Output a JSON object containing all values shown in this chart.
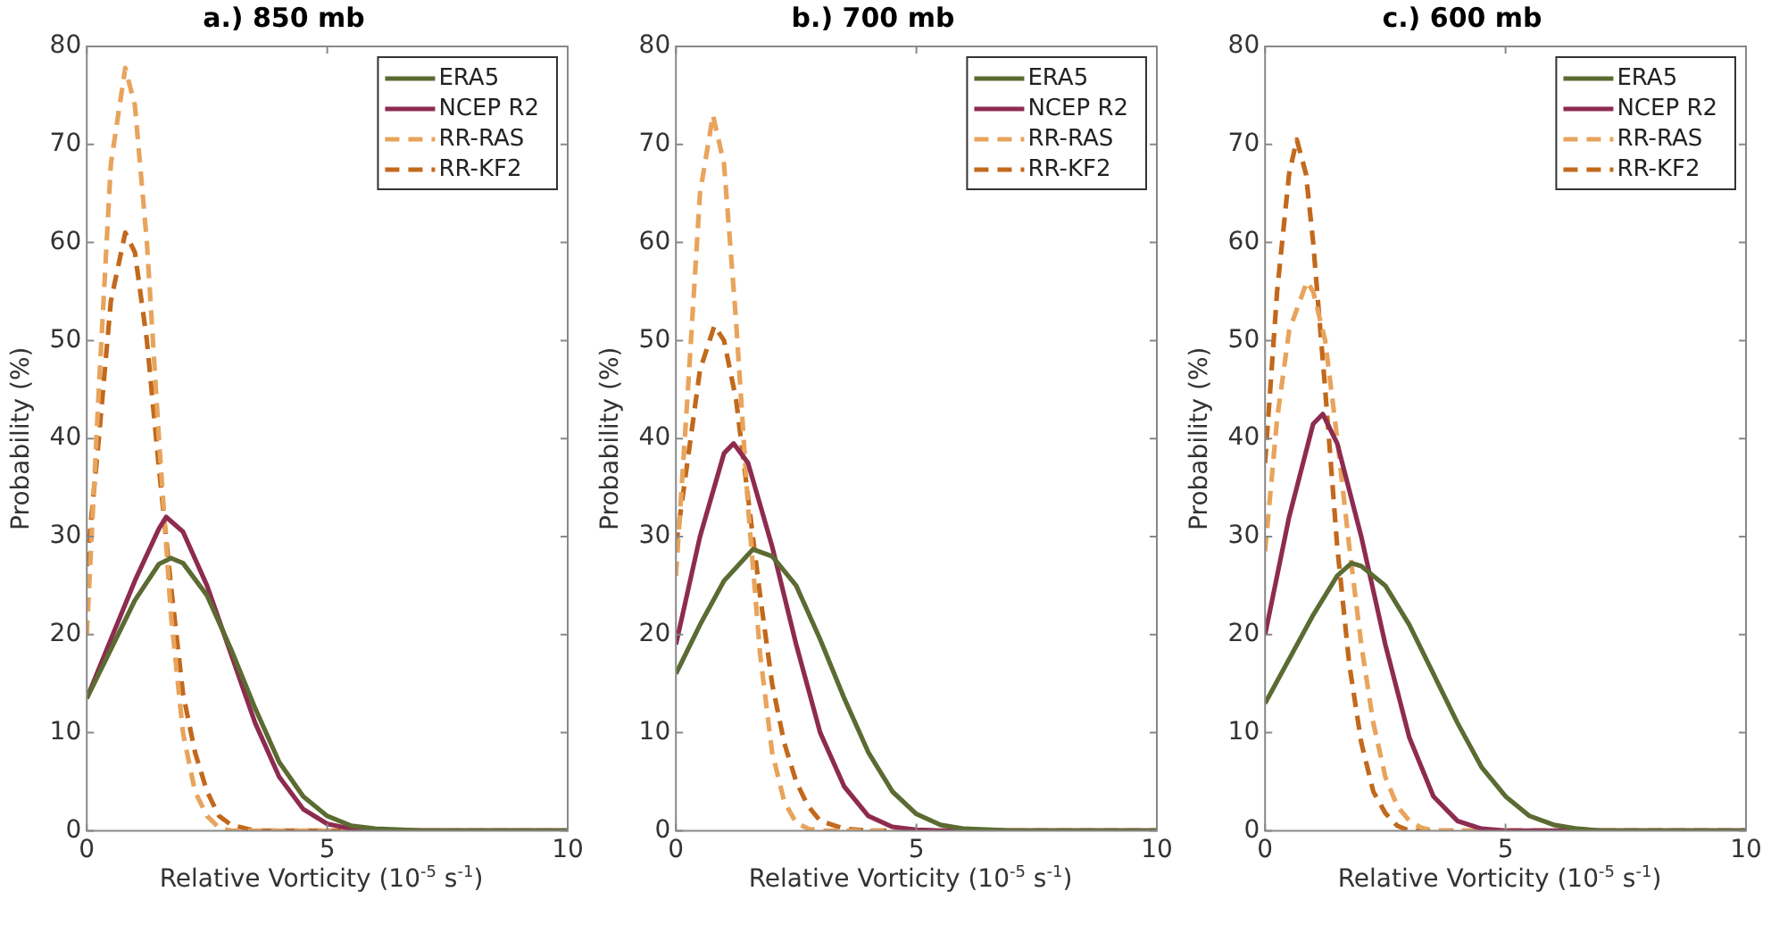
{
  "chart_data": [
    {
      "type": "line",
      "title": "a.) 850 mb",
      "xlabel": "Relative Vorticity (10$^{-5}$ s$^{-1}$)",
      "ylabel": "Probability (%)",
      "xlim": [
        0,
        10
      ],
      "xticks": [
        0,
        5,
        10
      ],
      "ylim": [
        0,
        80
      ],
      "yticks": [
        0,
        10,
        20,
        30,
        40,
        50,
        60,
        70,
        80
      ],
      "grid": false,
      "legend": "top right",
      "marker": "none",
      "series": [
        {
          "name": "ERA5",
          "color": "#5b6b32",
          "line_style": "solid",
          "x": [
            0,
            0.5,
            1,
            1.5,
            1.75,
            2,
            2.5,
            3,
            3.5,
            4,
            4.5,
            5,
            5.5,
            6,
            7,
            10
          ],
          "values": [
            13.5,
            18.5,
            23.5,
            27.2,
            27.8,
            27.3,
            24,
            18.5,
            12.5,
            7,
            3.5,
            1.5,
            0.5,
            0.2,
            0,
            0
          ]
        },
        {
          "name": "NCEP R2",
          "color": "#8e2b50",
          "line_style": "solid",
          "x": [
            0,
            0.5,
            1,
            1.5,
            1.65,
            2,
            2.5,
            3,
            3.5,
            4,
            4.5,
            5,
            5.5,
            6,
            10
          ],
          "values": [
            13.5,
            19.5,
            25.5,
            30.8,
            32,
            30.5,
            25,
            18,
            11,
            5.5,
            2.2,
            0.7,
            0.2,
            0,
            0
          ]
        },
        {
          "name": "RR-RAS",
          "color": "#e8a45c",
          "line_style": "dashed",
          "x": [
            0,
            0.25,
            0.5,
            0.8,
            1,
            1.25,
            1.5,
            1.75,
            2,
            2.25,
            2.5,
            2.75,
            3,
            10
          ],
          "values": [
            20,
            45,
            68,
            77.8,
            74,
            60,
            40,
            22,
            10,
            4,
            1.5,
            0.3,
            0,
            0
          ]
        },
        {
          "name": "RR-KF2",
          "color": "#c2691c",
          "line_style": "dashed",
          "x": [
            0,
            0.25,
            0.5,
            0.8,
            1,
            1.25,
            1.5,
            1.75,
            2,
            2.25,
            2.5,
            2.75,
            3,
            3.5,
            10
          ],
          "values": [
            27,
            40,
            54,
            61,
            59,
            50,
            37,
            25,
            14,
            8,
            4,
            1.5,
            0.6,
            0,
            0
          ]
        }
      ]
    },
    {
      "type": "line",
      "title": "b.) 700 mb",
      "xlabel": "Relative Vorticity (10$^{-5}$ s$^{-1}$)",
      "ylabel": "Probability (%)",
      "xlim": [
        0,
        10
      ],
      "xticks": [
        0,
        5,
        10
      ],
      "ylim": [
        0,
        80
      ],
      "yticks": [
        0,
        10,
        20,
        30,
        40,
        50,
        60,
        70,
        80
      ],
      "grid": false,
      "legend": "top right",
      "marker": "none",
      "series": [
        {
          "name": "ERA5",
          "color": "#5b6b32",
          "line_style": "solid",
          "x": [
            0,
            0.5,
            1,
            1.6,
            2,
            2.5,
            3,
            3.5,
            4,
            4.5,
            5,
            5.5,
            6,
            7,
            10
          ],
          "values": [
            16,
            21,
            25.5,
            28.7,
            28,
            25,
            19.5,
            13.5,
            8,
            4,
            1.7,
            0.6,
            0.2,
            0,
            0
          ]
        },
        {
          "name": "NCEP R2",
          "color": "#8e2b50",
          "line_style": "solid",
          "x": [
            0,
            0.5,
            1,
            1.2,
            1.5,
            2,
            2.5,
            3,
            3.5,
            4,
            4.5,
            5,
            5.5,
            10
          ],
          "values": [
            19,
            30,
            38.5,
            39.5,
            37.5,
            29,
            19,
            10,
            4.5,
            1.5,
            0.4,
            0.1,
            0,
            0
          ]
        },
        {
          "name": "RR-RAS",
          "color": "#e8a45c",
          "line_style": "dashed",
          "x": [
            0,
            0.25,
            0.5,
            0.77,
            1,
            1.25,
            1.5,
            1.75,
            2,
            2.25,
            2.5,
            2.75,
            3,
            10
          ],
          "values": [
            26,
            45,
            65,
            73,
            68,
            52,
            33,
            18,
            8,
            3,
            0.8,
            0.2,
            0,
            0
          ]
        },
        {
          "name": "RR-KF2",
          "color": "#c2691c",
          "line_style": "dashed",
          "x": [
            0,
            0.25,
            0.5,
            0.8,
            1,
            1.25,
            1.5,
            1.75,
            2,
            2.25,
            2.5,
            2.75,
            3,
            3.5,
            4,
            10
          ],
          "values": [
            29,
            38,
            47,
            51.5,
            50,
            44,
            34,
            24,
            15,
            9,
            5,
            2.5,
            1,
            0.2,
            0,
            0
          ]
        }
      ]
    },
    {
      "type": "line",
      "title": "c.) 600 mb",
      "xlabel": "Relative Vorticity (10$^{-5}$ s$^{-1}$)",
      "ylabel": "Probability (%)",
      "xlim": [
        0,
        10
      ],
      "xticks": [
        0,
        5,
        10
      ],
      "ylim": [
        0,
        80
      ],
      "yticks": [
        0,
        10,
        20,
        30,
        40,
        50,
        60,
        70,
        80
      ],
      "grid": false,
      "legend": "top right",
      "marker": "none",
      "series": [
        {
          "name": "ERA5",
          "color": "#5b6b32",
          "line_style": "solid",
          "x": [
            0,
            0.5,
            1,
            1.5,
            1.8,
            2,
            2.5,
            3,
            3.5,
            4,
            4.5,
            5,
            5.5,
            6,
            6.5,
            7,
            10
          ],
          "values": [
            13,
            17.5,
            22,
            26,
            27.3,
            27,
            25,
            21,
            16,
            11,
            6.5,
            3.5,
            1.5,
            0.6,
            0.2,
            0,
            0
          ]
        },
        {
          "name": "NCEP R2",
          "color": "#8e2b50",
          "line_style": "solid",
          "x": [
            0,
            0.5,
            1,
            1.2,
            1.5,
            2,
            2.5,
            3,
            3.5,
            4,
            4.5,
            5,
            10
          ],
          "values": [
            20,
            32,
            41.5,
            42.5,
            39.5,
            30,
            19,
            9.5,
            3.5,
            1,
            0.2,
            0,
            0
          ]
        },
        {
          "name": "RR-RAS",
          "color": "#e8a45c",
          "line_style": "dashed",
          "x": [
            0,
            0.25,
            0.5,
            0.87,
            1,
            1.25,
            1.5,
            1.75,
            2,
            2.25,
            2.5,
            2.75,
            3,
            3.25,
            3.5,
            10
          ],
          "values": [
            28.5,
            42,
            51,
            56,
            55,
            50,
            40,
            29,
            19,
            11,
            5.5,
            2.5,
            1,
            0.3,
            0,
            0
          ]
        },
        {
          "name": "RR-KF2",
          "color": "#c2691c",
          "line_style": "dashed",
          "x": [
            0,
            0.25,
            0.5,
            0.66,
            0.85,
            1,
            1.25,
            1.5,
            1.75,
            2,
            2.25,
            2.5,
            2.75,
            3,
            10
          ],
          "values": [
            37.5,
            55,
            67,
            70.5,
            67,
            60,
            45,
            29,
            17,
            9,
            4,
            1.8,
            0.5,
            0,
            0
          ]
        }
      ]
    }
  ]
}
